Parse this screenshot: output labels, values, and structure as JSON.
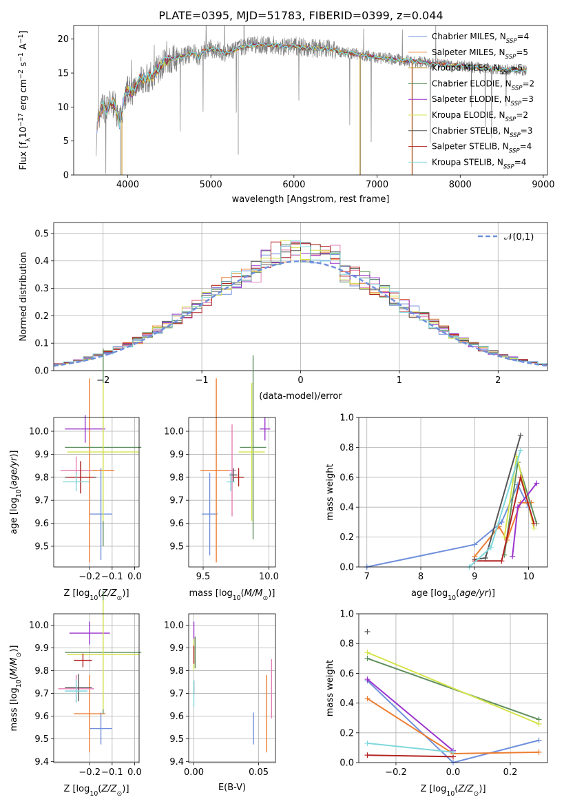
{
  "title": "PLATE=0395, MJD=51783, FIBERID=0399, z=0.044",
  "colors": {
    "Chabrier MILES": "#6f8fdc",
    "Salpeter MILES": "#ed7d31",
    "Kroupa MILES": "#b8860b",
    "Chabrier ELODIE": "#5f8f5f",
    "Salpeter ELODIE": "#9932cc",
    "Kroupa ELODIE": "#d4e44a",
    "Chabrier STELIB": "#555555",
    "Salpeter STELIB": "#b22222",
    "Kroupa STELIB": "#7fd7dc",
    "pink": "#e37fb5",
    "mono": "#808080",
    "normal": "#6f8fdc"
  },
  "chart_data": [
    {
      "id": "spectrum",
      "type": "line",
      "xlabel": "wavelength [Angstrom, rest frame]",
      "ylabel": "Flux [f_λ10^-17 erg cm^-2 s^-1 A^-1]",
      "xlim": [
        3350,
        9050
      ],
      "ylim": [
        0,
        22
      ],
      "xticks": [
        4000,
        5000,
        6000,
        7000,
        8000,
        9000
      ],
      "yticks": [
        0,
        5,
        10,
        15,
        20
      ],
      "legend_position": "top-right",
      "legend": [
        {
          "name": "Chabrier MILES",
          "prefix": "Chabrier MILES, N",
          "nssp": 4
        },
        {
          "name": "Salpeter MILES",
          "prefix": "Salpeter MILES, N",
          "nssp": 5
        },
        {
          "name": "Kroupa MILES",
          "prefix": "Kroupa MILES, N",
          "nssp": 5
        },
        {
          "name": "Chabrier ELODIE",
          "prefix": "Chabrier ELODIE, N",
          "nssp": 2
        },
        {
          "name": "Salpeter ELODIE",
          "prefix": "Salpeter ELODIE, N",
          "nssp": 3
        },
        {
          "name": "Kroupa ELODIE",
          "prefix": "Kroupa ELODIE, N",
          "nssp": 2
        },
        {
          "name": "Chabrier STELIB",
          "prefix": "Chabrier STELIB, N",
          "nssp": 3
        },
        {
          "name": "Salpeter STELIB",
          "prefix": "Salpeter STELIB, N",
          "nssp": 4
        },
        {
          "name": "Kroupa STELIB",
          "prefix": "Kroupa STELIB, N",
          "nssp": 4
        }
      ],
      "data_x": [
        3620,
        3650,
        3700,
        3750,
        3800,
        3850,
        3900,
        3950,
        4000,
        4050,
        4100,
        4150,
        4200,
        4300,
        4400,
        4500,
        4600,
        4700,
        4800,
        4862,
        4900,
        5000,
        5100,
        5175,
        5300,
        5400,
        5500,
        5600,
        5700,
        5800,
        5893,
        6000,
        6100,
        6200,
        6300,
        6400,
        6500,
        6563,
        6700,
        6800,
        6900,
        7000,
        7200,
        7400,
        7600,
        7800,
        8000,
        8200,
        8400,
        8600,
        8800
      ],
      "data_y": [
        5.0,
        8.5,
        10.2,
        9.5,
        10.6,
        10.4,
        7.5,
        10.9,
        12.6,
        12.2,
        12.9,
        14.3,
        14.0,
        14.6,
        16.2,
        17.0,
        17.3,
        17.6,
        18.0,
        17.2,
        18.2,
        18.6,
        18.4,
        17.9,
        18.5,
        18.9,
        19.1,
        19.2,
        19.1,
        19.1,
        18.8,
        19.0,
        18.8,
        18.7,
        18.6,
        18.6,
        18.3,
        18.0,
        17.9,
        17.7,
        17.5,
        17.3,
        17.0,
        16.8,
        16.5,
        16.2,
        16.1,
        15.8,
        15.6,
        15.5,
        15.4
      ]
    },
    {
      "id": "residuals",
      "type": "histogram",
      "xlabel": "(data-model)/error",
      "ylabel": "Normed distribution",
      "xlim": [
        -2.5,
        2.5
      ],
      "ylim": [
        0,
        0.54
      ],
      "xticks": [
        -2,
        -1,
        0,
        1,
        2
      ],
      "yticks": [
        0.0,
        0.1,
        0.2,
        0.3,
        0.4,
        0.5
      ],
      "legend": "𝒩(0,1)",
      "legend_position": "top-right",
      "bin_width": 0.1
    },
    {
      "id": "age_vs_Z",
      "type": "scatter",
      "xlabel": "Z [log10(Z/Z⊙)]",
      "ylabel": "age  [log10(age/yr)]",
      "xlim": [
        -0.36,
        0.02
      ],
      "ylim": [
        9.41,
        10.06
      ],
      "xticks": [
        -0.2,
        -0.1,
        0.0
      ],
      "yticks": [
        9.5,
        9.6,
        9.7,
        9.8,
        9.9,
        10.0
      ],
      "points": [
        {
          "c": "Chabrier MILES",
          "x": -0.15,
          "y": 9.64,
          "xe": 0.05,
          "ye": 0.2
        },
        {
          "c": "Salpeter MILES",
          "x": -0.2,
          "y": 9.83,
          "xe": 0.11,
          "ye": 0.4
        },
        {
          "c": "pink",
          "x": -0.26,
          "y": 9.83,
          "xe": 0.07,
          "ye": 0.06
        },
        {
          "c": "Chabrier ELODIE",
          "x": -0.14,
          "y": 9.93,
          "xe": 0.17,
          "ye": 0.43
        },
        {
          "c": "Salpeter ELODIE",
          "x": -0.22,
          "y": 10.01,
          "xe": 0.09,
          "ye": 0.06
        },
        {
          "c": "Kroupa ELODIE",
          "x": -0.14,
          "y": 9.91,
          "xe": 0.16,
          "ye": 0.3
        },
        {
          "c": "Chabrier STELIB",
          "x": -0.24,
          "y": 9.8,
          "xe": 0.07,
          "ye": 0.07
        },
        {
          "c": "Salpeter STELIB",
          "x": -0.24,
          "y": 9.8,
          "xe": 0.06,
          "ye": 0.07
        },
        {
          "c": "Kroupa STELIB",
          "x": -0.26,
          "y": 9.78,
          "xe": 0.06,
          "ye": 0.04
        }
      ]
    },
    {
      "id": "age_vs_mass",
      "type": "scatter",
      "xlabel": "mass [log10(M/M⊙)]",
      "ylabel": "",
      "xlim": [
        9.39,
        10.05
      ],
      "ylim": [
        9.41,
        10.06
      ],
      "xticks": [
        9.5,
        10.0
      ],
      "yticks": [
        9.5,
        9.6,
        9.7,
        9.8,
        9.9,
        10.0
      ],
      "points": [
        {
          "c": "Chabrier MILES",
          "x": 9.55,
          "y": 9.64,
          "xe": 0.06,
          "ye": 0.18
        },
        {
          "c": "Salpeter MILES",
          "x": 9.6,
          "y": 9.83,
          "xe": 0.12,
          "ye": 0.4
        },
        {
          "c": "pink",
          "x": 9.72,
          "y": 9.83,
          "xe": 0.03,
          "ye": 0.2
        },
        {
          "c": "Chabrier ELODIE",
          "x": 9.88,
          "y": 9.93,
          "xe": 0.1,
          "ye": 0.4
        },
        {
          "c": "Salpeter ELODIE",
          "x": 9.97,
          "y": 10.01,
          "xe": 0.04,
          "ye": 0.05
        },
        {
          "c": "Kroupa ELODIE",
          "x": 9.87,
          "y": 9.91,
          "xe": 0.1,
          "ye": 0.3
        },
        {
          "c": "Chabrier STELIB",
          "x": 9.73,
          "y": 9.81,
          "xe": 0.03,
          "ye": 0.03
        },
        {
          "c": "Salpeter STELIB",
          "x": 9.77,
          "y": 9.8,
          "xe": 0.04,
          "ye": 0.04
        },
        {
          "c": "Kroupa STELIB",
          "x": 9.71,
          "y": 9.78,
          "xe": 0.03,
          "ye": 0.04
        }
      ]
    },
    {
      "id": "weight_vs_age",
      "type": "line",
      "xlabel": "age  [log10(age/yr)]",
      "ylabel": "mass weight",
      "xlim": [
        6.85,
        10.35
      ],
      "ylim": [
        0,
        1.0
      ],
      "xticks": [
        7,
        8,
        9,
        10
      ],
      "yticks": [
        0.0,
        0.2,
        0.4,
        0.6,
        0.8,
        1.0
      ],
      "series": [
        {
          "c": "Chabrier MILES",
          "x": [
            7.0,
            9.0,
            9.5,
            9.8,
            10.0
          ],
          "y": [
            0.0,
            0.15,
            0.3,
            0.55,
            0.4
          ]
        },
        {
          "c": "Salpeter MILES",
          "x": [
            9.0,
            9.45,
            9.6,
            9.85,
            10.05
          ],
          "y": [
            0.07,
            0.27,
            0.18,
            0.43,
            0.43
          ]
        },
        {
          "c": "Chabrier ELODIE",
          "x": [
            9.55,
            9.8,
            10.15
          ],
          "y": [
            0.08,
            0.7,
            0.29
          ]
        },
        {
          "c": "Salpeter ELODIE",
          "x": [
            9.7,
            9.8,
            10.15
          ],
          "y": [
            0.07,
            0.4,
            0.56
          ]
        },
        {
          "c": "Kroupa ELODIE",
          "x": [
            9.55,
            9.78,
            10.1
          ],
          "y": [
            0.2,
            0.74,
            0.26
          ]
        },
        {
          "c": "Chabrier STELIB",
          "x": [
            9.0,
            9.2,
            9.85
          ],
          "y": [
            0.05,
            0.06,
            0.88
          ]
        },
        {
          "c": "Salpeter STELIB",
          "x": [
            9.0,
            9.5,
            9.85,
            10.1
          ],
          "y": [
            0.04,
            0.04,
            0.6,
            0.29
          ]
        },
        {
          "c": "Kroupa STELIB",
          "x": [
            8.9,
            9.3,
            9.85
          ],
          "y": [
            0.0,
            0.13,
            0.78
          ]
        }
      ]
    },
    {
      "id": "mass_vs_Z",
      "type": "scatter",
      "xlabel": "Z [log10(Z/Z⊙)]",
      "ylabel": "mass [log10(M/M⊙)]",
      "xlim": [
        -0.36,
        0.02
      ],
      "ylim": [
        9.395,
        10.05
      ],
      "xticks": [
        -0.2,
        -0.1,
        0.0
      ],
      "yticks": [
        9.4,
        9.5,
        9.6,
        9.7,
        9.8,
        9.9,
        10.0
      ],
      "points": [
        {
          "c": "Chabrier MILES",
          "x": -0.15,
          "y": 9.545,
          "xe": 0.05,
          "ye": 0.07
        },
        {
          "c": "Salpeter MILES",
          "x": -0.2,
          "y": 9.61,
          "xe": 0.07,
          "ye": 0.17
        },
        {
          "c": "pink",
          "x": -0.26,
          "y": 9.72,
          "xe": 0.08,
          "ye": 0.06
        },
        {
          "c": "Chabrier ELODIE",
          "x": -0.14,
          "y": 9.88,
          "xe": 0.17,
          "ye": 0.27
        },
        {
          "c": "Salpeter ELODIE",
          "x": -0.2,
          "y": 9.965,
          "xe": 0.09,
          "ye": 0.05
        },
        {
          "c": "Kroupa ELODIE",
          "x": -0.14,
          "y": 9.87,
          "xe": 0.16,
          "ye": 0.24
        },
        {
          "c": "Chabrier STELIB",
          "x": -0.25,
          "y": 9.725,
          "xe": 0.06,
          "ye": 0.06
        },
        {
          "c": "Salpeter STELIB",
          "x": -0.23,
          "y": 9.845,
          "xe": 0.04,
          "ye": 0.03
        },
        {
          "c": "Kroupa STELIB",
          "x": -0.26,
          "y": 9.71,
          "xe": 0.05,
          "ye": 0.05
        }
      ]
    },
    {
      "id": "mass_vs_EBV",
      "type": "scatter",
      "xlabel": "E(B-V)",
      "ylabel": "",
      "xlim": [
        -0.004,
        0.063
      ],
      "ylim": [
        9.395,
        10.05
      ],
      "xticks": [
        0.0,
        0.05
      ],
      "yticks": [
        9.4,
        9.5,
        9.6,
        9.7,
        9.8,
        9.9,
        10.0
      ],
      "points": [
        {
          "c": "Chabrier MILES",
          "x": 0.046,
          "y": 9.545,
          "xe": 0,
          "ye": 0.07
        },
        {
          "c": "Salpeter MILES",
          "x": 0.056,
          "y": 9.61,
          "xe": 0,
          "ye": 0.17
        },
        {
          "c": "pink",
          "x": 0.06,
          "y": 9.72,
          "xe": 0,
          "ye": 0.13
        },
        {
          "c": "Chabrier ELODIE",
          "x": 0.001,
          "y": 9.88,
          "xe": 0,
          "ye": 0.07
        },
        {
          "c": "Salpeter ELODIE",
          "x": 0.0,
          "y": 9.965,
          "xe": 0,
          "ye": 0.05
        },
        {
          "c": "Kroupa ELODIE",
          "x": 0.0,
          "y": 9.87,
          "xe": 0,
          "ye": 0.07
        },
        {
          "c": "Chabrier STELIB",
          "x": 0.0,
          "y": 9.725,
          "xe": 0,
          "ye": 0.03
        },
        {
          "c": "Salpeter STELIB",
          "x": 0.0,
          "y": 9.87,
          "xe": 0,
          "ye": 0.04
        },
        {
          "c": "Kroupa STELIB",
          "x": 0.0,
          "y": 9.7,
          "xe": 0,
          "ye": 0.06
        }
      ]
    },
    {
      "id": "weight_vs_Z",
      "type": "line",
      "xlabel": "Z [log10(Z/Z⊙)]",
      "ylabel": "mass weight",
      "xlim": [
        -0.33,
        0.33
      ],
      "ylim": [
        0,
        1.0
      ],
      "xticks": [
        -0.2,
        0.0,
        0.2
      ],
      "yticks": [
        0.0,
        0.2,
        0.4,
        0.6,
        0.8,
        1.0
      ],
      "series": [
        {
          "c": "Chabrier MILES",
          "x": [
            -0.3,
            0.0,
            0.3
          ],
          "y": [
            0.55,
            0.0,
            0.15
          ]
        },
        {
          "c": "Salpeter MILES",
          "x": [
            -0.3,
            0.0,
            0.3
          ],
          "y": [
            0.43,
            0.06,
            0.07
          ]
        },
        {
          "c": "Chabrier ELODIE",
          "x": [
            -0.3,
            0.3
          ],
          "y": [
            0.7,
            0.29
          ]
        },
        {
          "c": "Salpeter ELODIE",
          "x": [
            -0.3,
            0.0
          ],
          "y": [
            0.56,
            0.08
          ]
        },
        {
          "c": "Kroupa ELODIE",
          "x": [
            -0.3,
            0.3
          ],
          "y": [
            0.74,
            0.26
          ]
        },
        {
          "c": "Chabrier STELIB",
          "x": [
            -0.3
          ],
          "y": [
            0.88
          ]
        },
        {
          "c": "Salpeter STELIB",
          "x": [
            -0.3,
            0.0
          ],
          "y": [
            0.05,
            0.04
          ]
        },
        {
          "c": "Kroupa STELIB",
          "x": [
            -0.3,
            0.0
          ],
          "y": [
            0.13,
            0.07
          ]
        }
      ]
    }
  ]
}
